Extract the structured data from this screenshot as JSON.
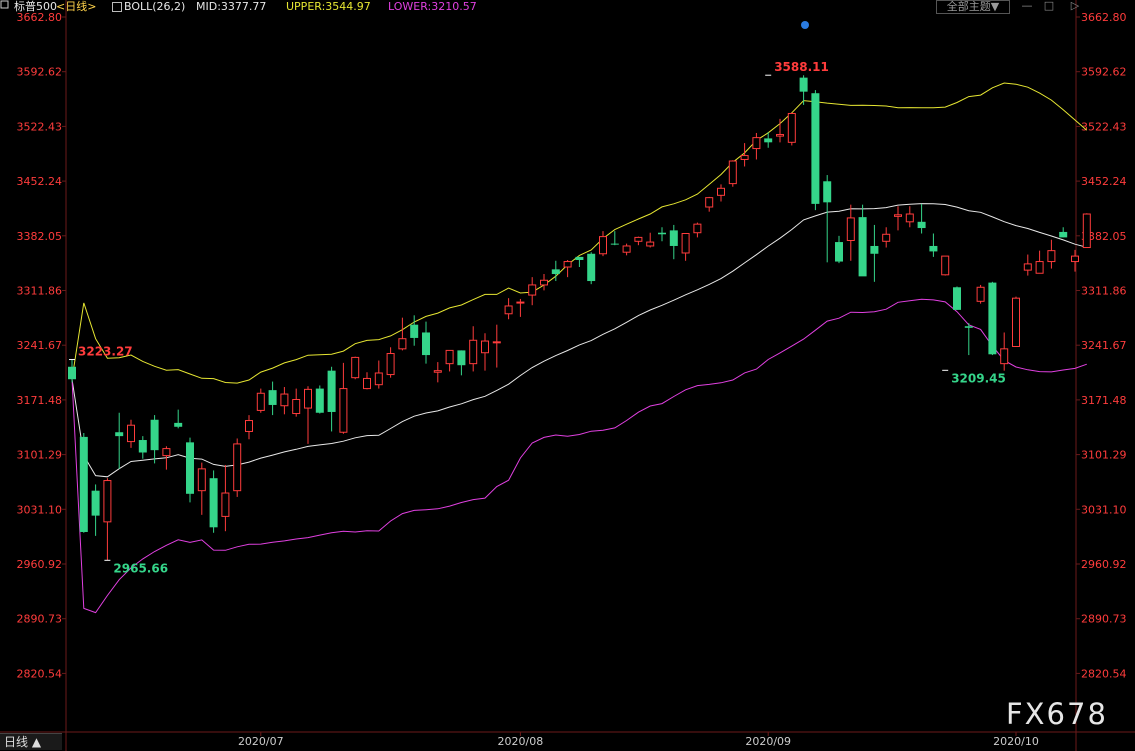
{
  "header": {
    "symbol": "标普500",
    "period": "<日线>",
    "indicator": "BOLL(26,2)",
    "mid_label": "MID:3377.77",
    "upper_label": "UPPER:3544.97",
    "lower_label": "LOWER:3210.57",
    "theme_button": "全部主题▼",
    "minimize": "—",
    "maximize": "□",
    "close": "▷"
  },
  "period_tab": "日线 ▲",
  "watermark": "FX678",
  "colors": {
    "up": "#ff3c3c",
    "down": "#35d58a",
    "mid": "#e8e8e8",
    "upper": "#e6e632",
    "lower": "#e040e0",
    "axis_text": "#ff3c3c",
    "grid": "#6b1a1a",
    "high_marker": "#ff3c3c",
    "low_marker": "#35d58a"
  },
  "chart_data": {
    "type": "candlestick",
    "title": "标普500 日线 BOLL(26,2)",
    "y_ticks": [
      "3662.80",
      "3592.62",
      "3522.43",
      "3452.24",
      "3382.05",
      "3311.86",
      "3241.67",
      "3171.48",
      "3101.29",
      "3031.10",
      "2960.92",
      "2890.73",
      "2820.54"
    ],
    "ylim": [
      2750.35,
      3662.8
    ],
    "x_tick_labels": [
      {
        "label": "2020/07",
        "index": 16
      },
      {
        "label": "2020/08",
        "index": 38
      },
      {
        "label": "2020/09",
        "index": 59
      },
      {
        "label": "2020/10",
        "index": 80
      }
    ],
    "annotations": [
      {
        "text": "3588.11",
        "index": 59,
        "value": 3588.11,
        "kind": "high"
      },
      {
        "text": "3223.27",
        "index": 0,
        "value": 3223.27,
        "kind": "high"
      },
      {
        "text": "2965.66",
        "index": 3,
        "value": 2965.66,
        "kind": "low"
      },
      {
        "text": "3209.45",
        "index": 74,
        "value": 3209.45,
        "kind": "low"
      }
    ],
    "candles": [
      [
        3214,
        3198,
        3223,
        3194
      ],
      [
        3124,
        3002,
        3129,
        3001
      ],
      [
        3055,
        3023,
        3063,
        2997
      ],
      [
        3015,
        3068,
        3071,
        2966
      ],
      [
        3130,
        3125,
        3155,
        3083
      ],
      [
        3118,
        3139,
        3146,
        3110
      ],
      [
        3120,
        3104,
        3125,
        3096
      ],
      [
        3146,
        3107,
        3152,
        3090
      ],
      [
        3100,
        3109,
        3112,
        3082
      ],
      [
        3142,
        3137,
        3159,
        3135
      ],
      [
        3117,
        3051,
        3123,
        3040
      ],
      [
        3055,
        3083,
        3091,
        3024
      ],
      [
        3071,
        3008,
        3081,
        3001
      ],
      [
        3022,
        3052,
        3088,
        3003
      ],
      [
        3055,
        3115,
        3122,
        3047
      ],
      [
        3131,
        3145,
        3152,
        3121
      ],
      [
        3158,
        3180,
        3186,
        3155
      ],
      [
        3184,
        3165,
        3195,
        3152
      ],
      [
        3164,
        3179,
        3188,
        3153
      ],
      [
        3154,
        3172,
        3186,
        3150
      ],
      [
        3161,
        3185,
        3189,
        3115
      ],
      [
        3186,
        3155,
        3190,
        3154
      ],
      [
        3209,
        3156,
        3214,
        3131
      ],
      [
        3130,
        3186,
        3219,
        3128
      ],
      [
        3200,
        3226,
        3227,
        3198
      ],
      [
        3186,
        3199,
        3207,
        3185
      ],
      [
        3191,
        3206,
        3222,
        3186
      ],
      [
        3204,
        3231,
        3239,
        3200
      ],
      [
        3237,
        3250,
        3277,
        3235
      ],
      [
        3268,
        3251,
        3280,
        3241
      ],
      [
        3258,
        3229,
        3272,
        3218
      ],
      [
        3207,
        3209,
        3220,
        3194
      ],
      [
        3218,
        3235,
        3235,
        3208
      ],
      [
        3235,
        3216,
        3235,
        3203
      ],
      [
        3218,
        3248,
        3266,
        3208
      ],
      [
        3232,
        3247,
        3257,
        3209
      ],
      [
        3245,
        3246,
        3268,
        3213
      ],
      [
        3282,
        3292,
        3302,
        3275
      ],
      [
        3297,
        3297,
        3301,
        3278
      ],
      [
        3306,
        3319,
        3329,
        3293
      ],
      [
        3319,
        3325,
        3333,
        3312
      ],
      [
        3339,
        3333,
        3350,
        3324
      ],
      [
        3342,
        3349,
        3351,
        3329
      ],
      [
        3355,
        3351,
        3355,
        3342
      ],
      [
        3359,
        3324,
        3361,
        3320
      ],
      [
        3359,
        3381,
        3388,
        3356
      ],
      [
        3372,
        3371,
        3388,
        3370
      ],
      [
        3361,
        3369,
        3372,
        3357
      ],
      [
        3375,
        3380,
        3381,
        3370
      ],
      [
        3369,
        3374,
        3386,
        3367
      ],
      [
        3386,
        3384,
        3393,
        3375
      ],
      [
        3389,
        3369,
        3396,
        3352
      ],
      [
        3360,
        3385,
        3385,
        3350
      ],
      [
        3386,
        3397,
        3399,
        3380
      ],
      [
        3419,
        3431,
        3432,
        3413
      ],
      [
        3434,
        3443,
        3448,
        3426
      ],
      [
        3449,
        3478,
        3479,
        3445
      ],
      [
        3480,
        3485,
        3501,
        3471
      ],
      [
        3494,
        3508,
        3514,
        3480
      ],
      [
        3507,
        3502,
        3515,
        3495
      ],
      [
        3510,
        3512,
        3532,
        3502
      ],
      [
        3502,
        3539,
        3540,
        3498
      ],
      [
        3585,
        3567,
        3588,
        3550
      ],
      [
        3565,
        3423,
        3569,
        3415
      ],
      [
        3452,
        3425,
        3460,
        3348
      ],
      [
        3374,
        3349,
        3382,
        3347
      ],
      [
        3376,
        3405,
        3422,
        3350
      ],
      [
        3406,
        3330,
        3422,
        3340
      ],
      [
        3369,
        3359,
        3396,
        3323
      ],
      [
        3375,
        3384,
        3393,
        3367
      ],
      [
        3407,
        3409,
        3420,
        3389
      ],
      [
        3400,
        3410,
        3420,
        3393
      ],
      [
        3400,
        3392,
        3423,
        3385
      ],
      [
        3369,
        3362,
        3385,
        3355
      ],
      [
        3332,
        3356,
        3356,
        3331
      ],
      [
        3316,
        3287,
        3317,
        3287
      ],
      [
        3266,
        3264,
        3270,
        3229
      ],
      [
        3298,
        3316,
        3319,
        3295
      ],
      [
        3322,
        3230,
        3323,
        3229
      ],
      [
        3218,
        3237,
        3258,
        3209
      ],
      [
        3240,
        3302,
        3304,
        3247
      ],
      [
        3338,
        3346,
        3358,
        3331
      ],
      [
        3334,
        3349,
        3363,
        3343
      ],
      [
        3349,
        3363,
        3377,
        3340
      ],
      [
        3387,
        3380,
        3393,
        3380
      ],
      [
        3349,
        3356,
        3364,
        3336
      ],
      [
        3367,
        3410,
        3411,
        3367
      ]
    ]
  }
}
